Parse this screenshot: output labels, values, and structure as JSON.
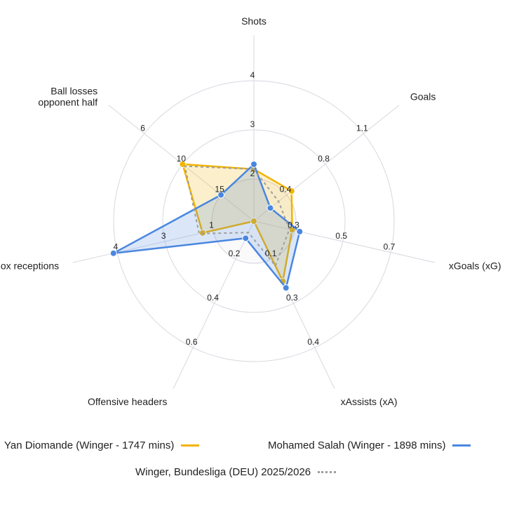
{
  "chart_data": {
    "type": "radar",
    "axes": [
      {
        "name": "Shots",
        "lines": [
          "Shots"
        ],
        "ticks": [
          "2",
          "3",
          "4"
        ],
        "tick_values": [
          2,
          3,
          4
        ],
        "reversed": false
      },
      {
        "name": "Goals",
        "lines": [
          "Goals"
        ],
        "ticks": [
          "0.4",
          "0.8",
          "1.1"
        ],
        "tick_values": [
          0.4,
          0.8,
          1.1
        ],
        "reversed": false
      },
      {
        "name": "xGoals (xG)",
        "lines": [
          "xGoals (xG)"
        ],
        "ticks": [
          "0.3",
          "0.5",
          "0.7"
        ],
        "tick_values": [
          0.3,
          0.5,
          0.7
        ],
        "reversed": false
      },
      {
        "name": "xAssists (xA)",
        "lines": [
          "xAssists (xA)"
        ],
        "ticks": [
          "0.1",
          "0.3",
          "0.4"
        ],
        "tick_values": [
          0.1,
          0.3,
          0.4
        ],
        "reversed": false
      },
      {
        "name": "Offensive headers",
        "lines": [
          "Offensive headers"
        ],
        "ticks": [
          "0.2",
          "0.4",
          "0.6"
        ],
        "tick_values": [
          0.2,
          0.4,
          0.6
        ],
        "reversed": false
      },
      {
        "name": "Box receptions",
        "lines": [
          "Box receptions"
        ],
        "ticks": [
          "1",
          "3",
          "4"
        ],
        "tick_values": [
          1.3,
          2.7,
          4.0
        ],
        "reversed": false
      },
      {
        "name": "Ball losses opponent half",
        "lines": [
          "Ball losses",
          "opponent half"
        ],
        "ticks": [
          "15",
          "10",
          "6"
        ],
        "tick_values": [
          15,
          10,
          6
        ],
        "reversed": true
      }
    ],
    "series": [
      {
        "name": "Yan Diomande (Winger - 1747 mins)",
        "color": "#f2b400",
        "style": "solid",
        "fill": true,
        "values": [
          2.2,
          0.45,
          0.28,
          0.2,
          0.0,
          1.6,
          10.0
        ]
      },
      {
        "name": "Mohamed Salah (Winger - 1898 mins)",
        "color": "#4a86e0",
        "style": "solid",
        "fill": true,
        "values": [
          2.3,
          0.2,
          0.32,
          0.23,
          0.09,
          4.1,
          15.0
        ]
      },
      {
        "name": "Winger, Bundesliga (DEU) 2025/2026",
        "color": "#9e9e9e",
        "style": "dotted",
        "fill": false,
        "values": [
          2.2,
          0.3,
          0.26,
          0.13,
          0.06,
          1.7,
          10.3
        ]
      }
    ],
    "grid": "circular",
    "legend_position": "bottom"
  }
}
